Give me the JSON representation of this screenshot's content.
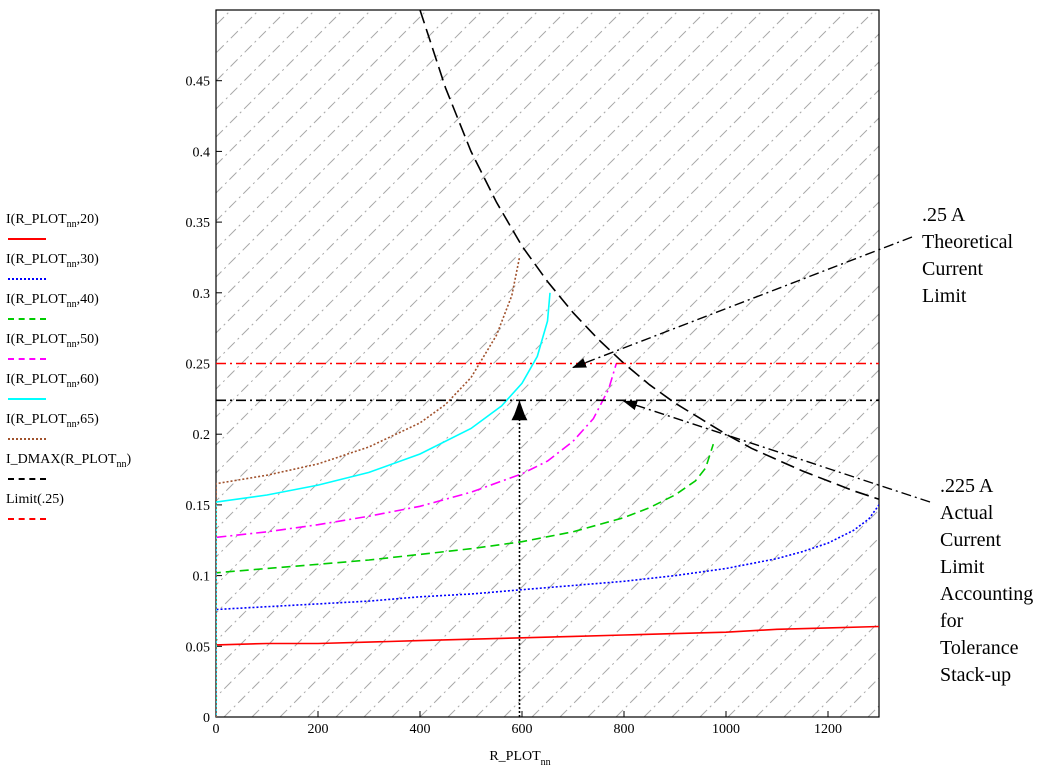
{
  "chart_data": {
    "type": "line",
    "xlabel": "R_PLOT",
    "xlabel_subscript": "nn",
    "xlim": [
      0,
      1300
    ],
    "ylim": [
      0,
      0.5
    ],
    "x_ticks": [
      0,
      200,
      400,
      600,
      800,
      1000,
      1200
    ],
    "y_ticks": [
      0,
      0.05,
      0.1,
      0.15,
      0.2,
      0.25,
      0.3,
      0.35,
      0.4,
      0.45
    ],
    "y_tick_labels": [
      "0",
      "0.05",
      "0.1",
      "0.15",
      "0.2",
      "0.25",
      "0.3",
      "0.35",
      "0.4",
      "0.45"
    ],
    "series": [
      {
        "name": "I(R_PLOT_nn,20)",
        "legend_prefix": "I(R_PLOT",
        "legend_sub": "nn",
        "legend_suffix": ",20)",
        "color": "#ff0000",
        "dash": "solid",
        "points": [
          [
            0,
            0
          ],
          [
            0,
            0.051
          ],
          [
            100,
            0.052
          ],
          [
            200,
            0.052
          ],
          [
            300,
            0.053
          ],
          [
            400,
            0.054
          ],
          [
            500,
            0.055
          ],
          [
            600,
            0.056
          ],
          [
            700,
            0.057
          ],
          [
            800,
            0.058
          ],
          [
            900,
            0.059
          ],
          [
            1000,
            0.06
          ],
          [
            1100,
            0.062
          ],
          [
            1200,
            0.063
          ],
          [
            1300,
            0.064
          ]
        ]
      },
      {
        "name": "I(R_PLOT_nn,30)",
        "legend_prefix": "I(R_PLOT",
        "legend_sub": "nn",
        "legend_suffix": ",30)",
        "color": "#0000ff",
        "dash": "dotted",
        "points": [
          [
            0,
            0
          ],
          [
            0,
            0.076
          ],
          [
            100,
            0.078
          ],
          [
            200,
            0.08
          ],
          [
            300,
            0.082
          ],
          [
            400,
            0.085
          ],
          [
            500,
            0.087
          ],
          [
            600,
            0.09
          ],
          [
            700,
            0.093
          ],
          [
            800,
            0.096
          ],
          [
            900,
            0.1
          ],
          [
            1000,
            0.105
          ],
          [
            1100,
            0.112
          ],
          [
            1150,
            0.117
          ],
          [
            1200,
            0.123
          ],
          [
            1250,
            0.132
          ],
          [
            1280,
            0.14
          ],
          [
            1300,
            0.15
          ]
        ]
      },
      {
        "name": "I(R_PLOT_nn,40)",
        "legend_prefix": "I(R_PLOT",
        "legend_sub": "nn",
        "legend_suffix": ",40)",
        "color": "#00cc00",
        "dash": "dashed",
        "points": [
          [
            0,
            0
          ],
          [
            0,
            0.102
          ],
          [
            100,
            0.105
          ],
          [
            200,
            0.108
          ],
          [
            300,
            0.111
          ],
          [
            400,
            0.115
          ],
          [
            500,
            0.119
          ],
          [
            600,
            0.124
          ],
          [
            700,
            0.131
          ],
          [
            800,
            0.141
          ],
          [
            850,
            0.148
          ],
          [
            900,
            0.157
          ],
          [
            940,
            0.167
          ],
          [
            960,
            0.176
          ],
          [
            975,
            0.193
          ]
        ]
      },
      {
        "name": "I(R_PLOT_nn,50)",
        "legend_prefix": "I(R_PLOT",
        "legend_sub": "nn",
        "legend_suffix": ",50)",
        "color": "#ff00ff",
        "dash": "dashdot",
        "points": [
          [
            0,
            0
          ],
          [
            0,
            0.127
          ],
          [
            100,
            0.131
          ],
          [
            200,
            0.136
          ],
          [
            300,
            0.142
          ],
          [
            400,
            0.149
          ],
          [
            500,
            0.159
          ],
          [
            600,
            0.172
          ],
          [
            650,
            0.181
          ],
          [
            700,
            0.195
          ],
          [
            740,
            0.211
          ],
          [
            770,
            0.232
          ],
          [
            785,
            0.25
          ]
        ]
      },
      {
        "name": "I(R_PLOT_nn,60)",
        "legend_prefix": "I(R_PLOT",
        "legend_sub": "nn",
        "legend_suffix": ",60)",
        "color": "#00ffff",
        "dash": "solid",
        "points": [
          [
            0,
            0
          ],
          [
            0,
            0.152
          ],
          [
            100,
            0.157
          ],
          [
            200,
            0.164
          ],
          [
            300,
            0.173
          ],
          [
            400,
            0.186
          ],
          [
            500,
            0.204
          ],
          [
            560,
            0.22
          ],
          [
            600,
            0.236
          ],
          [
            630,
            0.255
          ],
          [
            650,
            0.28
          ],
          [
            655,
            0.3
          ]
        ]
      },
      {
        "name": "I(R_PLOT_nn,65)",
        "legend_prefix": "I(R_PLOT",
        "legend_sub": "nn",
        "legend_suffix": ",65)",
        "color": "#a0522d",
        "dash": "dotted",
        "points": [
          [
            0,
            0
          ],
          [
            0,
            0.165
          ],
          [
            100,
            0.171
          ],
          [
            200,
            0.179
          ],
          [
            300,
            0.191
          ],
          [
            400,
            0.208
          ],
          [
            450,
            0.221
          ],
          [
            500,
            0.24
          ],
          [
            550,
            0.27
          ],
          [
            580,
            0.298
          ],
          [
            595,
            0.325
          ]
        ]
      },
      {
        "name": "I_DMAX(R_PLOT_nn)",
        "legend_prefix": "I_DMAX(R_PLOT",
        "legend_sub": "nn",
        "legend_suffix": ")",
        "color": "#000000",
        "dash": "longdash",
        "points": [
          [
            400,
            0.5
          ],
          [
            450,
            0.445
          ],
          [
            500,
            0.4
          ],
          [
            550,
            0.364
          ],
          [
            600,
            0.333
          ],
          [
            650,
            0.308
          ],
          [
            700,
            0.286
          ],
          [
            750,
            0.267
          ],
          [
            800,
            0.25
          ],
          [
            850,
            0.235
          ],
          [
            900,
            0.222
          ],
          [
            950,
            0.211
          ],
          [
            1000,
            0.2
          ],
          [
            1050,
            0.19
          ],
          [
            1100,
            0.182
          ],
          [
            1150,
            0.174
          ],
          [
            1200,
            0.167
          ],
          [
            1250,
            0.16
          ],
          [
            1300,
            0.154
          ]
        ]
      },
      {
        "name": "Limit(.25)",
        "legend_prefix": "Limit(.25)",
        "legend_sub": "",
        "legend_suffix": "",
        "color": "#ff0000",
        "dash": "dashdot",
        "points": [
          [
            0,
            0.25
          ],
          [
            1300,
            0.25
          ]
        ]
      }
    ],
    "extra_lines": [
      {
        "name": "limit-225",
        "color": "#000000",
        "dash": "dashdot",
        "points": [
          [
            0,
            0.224
          ],
          [
            1300,
            0.224
          ]
        ]
      },
      {
        "name": "vertical-600",
        "color": "#000000",
        "dash": "dotted",
        "points": [
          [
            595,
            0
          ],
          [
            595,
            0.224
          ]
        ]
      }
    ],
    "annotations": [
      {
        "text": ".25 A\nTheoretical\nCurrent\nLimit"
      },
      {
        "text": ".225 A\nActual\nCurrent\nLimit\nAccounting\nfor\nTolerance\nStack-up"
      }
    ],
    "hatched_region": "above I_DMAX curve"
  }
}
